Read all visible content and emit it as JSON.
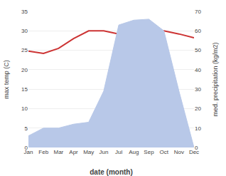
{
  "chart_data": {
    "type": "line",
    "xlabel": "date (month)",
    "ylabel": "max temp (C)",
    "y2label": "med. precipitation (kg/m2)",
    "categories": [
      "Jan",
      "Feb",
      "Mar",
      "Apr",
      "May",
      "Jun",
      "Jul",
      "Aug",
      "Sep",
      "Oct",
      "Nov",
      "Dec"
    ],
    "series": [
      {
        "type": "area",
        "axis": "y2",
        "color": "#b8c8e8",
        "values": [
          6.0,
          10.0,
          10.0,
          12.0,
          13.0,
          29.0,
          63.0,
          65.5,
          66.0,
          60.0,
          29.0,
          0.0
        ]
      },
      {
        "type": "line",
        "color": "#cc3333",
        "values": [
          24.8,
          24.2,
          25.5,
          28.0,
          30.0,
          30.0,
          29.2,
          29.0,
          29.5,
          30.0,
          29.2,
          28.2
        ]
      }
    ],
    "ylim": [
      0,
      35
    ],
    "yticks": [
      0,
      5,
      10,
      15,
      20,
      25,
      30,
      35
    ],
    "y2lim": [
      0,
      70
    ],
    "y2ticks": [
      0,
      10,
      20,
      30,
      40,
      50,
      60,
      70
    ],
    "grid": true
  }
}
